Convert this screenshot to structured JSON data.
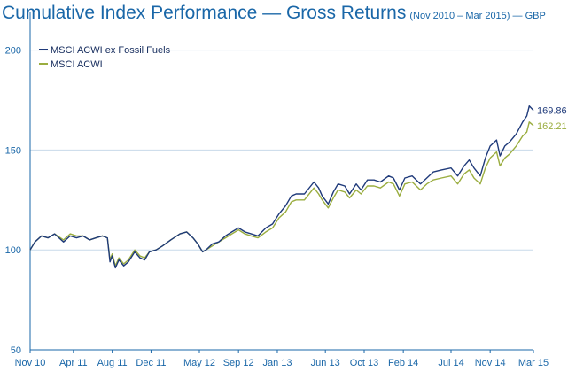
{
  "colors": {
    "series1": "#1f3a7a",
    "series2": "#9aad3f",
    "axis": "#1a67a8",
    "grid": "#c8daea"
  },
  "chart_data": {
    "type": "line",
    "title": "Cumulative Index Performance — Gross Returns",
    "subtitle": "(Nov 2010 – Mar 2015) — GBP",
    "xlabel": "",
    "ylabel": "",
    "ylim": [
      50,
      210
    ],
    "yticks": [
      50,
      100,
      150,
      200
    ],
    "xlim": [
      "2010-11-30",
      "2015-03-31"
    ],
    "xticks": [
      "Nov 10",
      "Apr 11",
      "Aug 11",
      "Dec 11",
      "May 12",
      "Sep 12",
      "Jan 13",
      "Jun 13",
      "Oct 13",
      "Feb 14",
      "Jul 14",
      "Nov 14",
      "Mar 15"
    ],
    "xtick_dates": [
      "2010-11-30",
      "2011-04-15",
      "2011-08-15",
      "2011-12-15",
      "2012-05-15",
      "2012-09-15",
      "2013-01-15",
      "2013-06-15",
      "2013-10-15",
      "2014-02-15",
      "2014-07-15",
      "2014-11-15",
      "2015-03-31"
    ],
    "grid": "horizontal",
    "legend_position": "top-left",
    "series": [
      {
        "name": "MSCI ACWI ex Fossil Fuels",
        "end_label": "169.86",
        "points": [
          [
            "2010-11-30",
            100
          ],
          [
            "2010-12-15",
            104
          ],
          [
            "2011-01-05",
            107
          ],
          [
            "2011-01-25",
            106
          ],
          [
            "2011-02-15",
            108
          ],
          [
            "2011-03-15",
            104
          ],
          [
            "2011-04-05",
            107
          ],
          [
            "2011-04-25",
            106
          ],
          [
            "2011-05-15",
            107
          ],
          [
            "2011-06-05",
            105
          ],
          [
            "2011-06-25",
            106
          ],
          [
            "2011-07-15",
            107
          ],
          [
            "2011-07-31",
            106
          ],
          [
            "2011-08-08",
            94
          ],
          [
            "2011-08-15",
            97
          ],
          [
            "2011-08-25",
            91
          ],
          [
            "2011-09-05",
            95
          ],
          [
            "2011-09-20",
            92
          ],
          [
            "2011-10-05",
            94
          ],
          [
            "2011-10-25",
            99
          ],
          [
            "2011-11-10",
            96
          ],
          [
            "2011-11-25",
            95
          ],
          [
            "2011-12-10",
            99
          ],
          [
            "2011-12-31",
            100
          ],
          [
            "2012-01-20",
            102
          ],
          [
            "2012-02-15",
            105
          ],
          [
            "2012-03-15",
            108
          ],
          [
            "2012-04-05",
            109
          ],
          [
            "2012-04-25",
            106
          ],
          [
            "2012-05-10",
            103
          ],
          [
            "2012-05-25",
            99
          ],
          [
            "2012-06-05",
            100
          ],
          [
            "2012-06-25",
            103
          ],
          [
            "2012-07-15",
            104
          ],
          [
            "2012-08-05",
            107
          ],
          [
            "2012-08-25",
            109
          ],
          [
            "2012-09-15",
            111
          ],
          [
            "2012-10-05",
            109
          ],
          [
            "2012-10-25",
            108
          ],
          [
            "2012-11-15",
            107
          ],
          [
            "2012-12-10",
            111
          ],
          [
            "2012-12-31",
            113
          ],
          [
            "2013-01-20",
            118
          ],
          [
            "2013-02-10",
            122
          ],
          [
            "2013-02-28",
            127
          ],
          [
            "2013-03-15",
            128
          ],
          [
            "2013-04-10",
            128
          ],
          [
            "2013-05-10",
            134
          ],
          [
            "2013-05-25",
            131
          ],
          [
            "2013-06-05",
            127
          ],
          [
            "2013-06-24",
            123
          ],
          [
            "2013-07-10",
            129
          ],
          [
            "2013-07-25",
            133
          ],
          [
            "2013-08-15",
            132
          ],
          [
            "2013-08-30",
            128
          ],
          [
            "2013-09-20",
            133
          ],
          [
            "2013-10-05",
            130
          ],
          [
            "2013-10-25",
            135
          ],
          [
            "2013-11-15",
            135
          ],
          [
            "2013-12-05",
            134
          ],
          [
            "2013-12-31",
            137
          ],
          [
            "2014-01-15",
            136
          ],
          [
            "2014-02-03",
            130
          ],
          [
            "2014-02-20",
            136
          ],
          [
            "2014-03-15",
            137
          ],
          [
            "2014-04-10",
            133
          ],
          [
            "2014-04-30",
            136
          ],
          [
            "2014-05-20",
            139
          ],
          [
            "2014-06-15",
            140
          ],
          [
            "2014-07-15",
            141
          ],
          [
            "2014-08-05",
            137
          ],
          [
            "2014-08-25",
            142
          ],
          [
            "2014-09-10",
            145
          ],
          [
            "2014-09-25",
            141
          ],
          [
            "2014-10-15",
            137
          ],
          [
            "2014-10-31",
            146
          ],
          [
            "2014-11-15",
            152
          ],
          [
            "2014-12-05",
            155
          ],
          [
            "2014-12-16",
            147
          ],
          [
            "2014-12-31",
            152
          ],
          [
            "2015-01-15",
            154
          ],
          [
            "2015-02-05",
            158
          ],
          [
            "2015-02-25",
            164
          ],
          [
            "2015-03-10",
            167
          ],
          [
            "2015-03-18",
            172
          ],
          [
            "2015-03-31",
            169.86
          ]
        ]
      },
      {
        "name": "MSCI ACWI",
        "end_label": "162.21",
        "points": [
          [
            "2010-11-30",
            100
          ],
          [
            "2010-12-15",
            104
          ],
          [
            "2011-01-05",
            107
          ],
          [
            "2011-01-25",
            106
          ],
          [
            "2011-02-15",
            108
          ],
          [
            "2011-03-15",
            105
          ],
          [
            "2011-04-05",
            108
          ],
          [
            "2011-04-25",
            107
          ],
          [
            "2011-05-15",
            107
          ],
          [
            "2011-06-05",
            105
          ],
          [
            "2011-06-25",
            106
          ],
          [
            "2011-07-15",
            107
          ],
          [
            "2011-07-31",
            106
          ],
          [
            "2011-08-08",
            95
          ],
          [
            "2011-08-15",
            98
          ],
          [
            "2011-08-25",
            92
          ],
          [
            "2011-09-05",
            96
          ],
          [
            "2011-09-20",
            93
          ],
          [
            "2011-10-05",
            95
          ],
          [
            "2011-10-25",
            100
          ],
          [
            "2011-11-10",
            97
          ],
          [
            "2011-11-25",
            96
          ],
          [
            "2011-12-10",
            99
          ],
          [
            "2011-12-31",
            100
          ],
          [
            "2012-01-20",
            102
          ],
          [
            "2012-02-15",
            105
          ],
          [
            "2012-03-15",
            108
          ],
          [
            "2012-04-05",
            109
          ],
          [
            "2012-04-25",
            106
          ],
          [
            "2012-05-10",
            103
          ],
          [
            "2012-05-25",
            99
          ],
          [
            "2012-06-05",
            100
          ],
          [
            "2012-06-25",
            102
          ],
          [
            "2012-07-15",
            104
          ],
          [
            "2012-08-05",
            106
          ],
          [
            "2012-08-25",
            108
          ],
          [
            "2012-09-15",
            110
          ],
          [
            "2012-10-05",
            108
          ],
          [
            "2012-10-25",
            107
          ],
          [
            "2012-11-15",
            106
          ],
          [
            "2012-12-10",
            109
          ],
          [
            "2012-12-31",
            111
          ],
          [
            "2013-01-20",
            116
          ],
          [
            "2013-02-10",
            119
          ],
          [
            "2013-02-28",
            124
          ],
          [
            "2013-03-15",
            125
          ],
          [
            "2013-04-10",
            125
          ],
          [
            "2013-05-10",
            131
          ],
          [
            "2013-05-25",
            128
          ],
          [
            "2013-06-05",
            125
          ],
          [
            "2013-06-24",
            121
          ],
          [
            "2013-07-10",
            126
          ],
          [
            "2013-07-25",
            130
          ],
          [
            "2013-08-15",
            129
          ],
          [
            "2013-08-30",
            126
          ],
          [
            "2013-09-20",
            130
          ],
          [
            "2013-10-05",
            128
          ],
          [
            "2013-10-25",
            132
          ],
          [
            "2013-11-15",
            132
          ],
          [
            "2013-12-05",
            131
          ],
          [
            "2013-12-31",
            134
          ],
          [
            "2014-01-15",
            133
          ],
          [
            "2014-02-03",
            127
          ],
          [
            "2014-02-20",
            133
          ],
          [
            "2014-03-15",
            134
          ],
          [
            "2014-04-10",
            130
          ],
          [
            "2014-04-30",
            133
          ],
          [
            "2014-05-20",
            135
          ],
          [
            "2014-06-15",
            136
          ],
          [
            "2014-07-15",
            137
          ],
          [
            "2014-08-05",
            133
          ],
          [
            "2014-08-25",
            138
          ],
          [
            "2014-09-10",
            140
          ],
          [
            "2014-09-25",
            136
          ],
          [
            "2014-10-15",
            133
          ],
          [
            "2014-10-31",
            141
          ],
          [
            "2014-11-15",
            146
          ],
          [
            "2014-12-05",
            149
          ],
          [
            "2014-12-16",
            142
          ],
          [
            "2014-12-31",
            146
          ],
          [
            "2015-01-15",
            148
          ],
          [
            "2015-02-05",
            152
          ],
          [
            "2015-02-25",
            157
          ],
          [
            "2015-03-10",
            159
          ],
          [
            "2015-03-18",
            164
          ],
          [
            "2015-03-31",
            162.21
          ]
        ]
      }
    ]
  }
}
